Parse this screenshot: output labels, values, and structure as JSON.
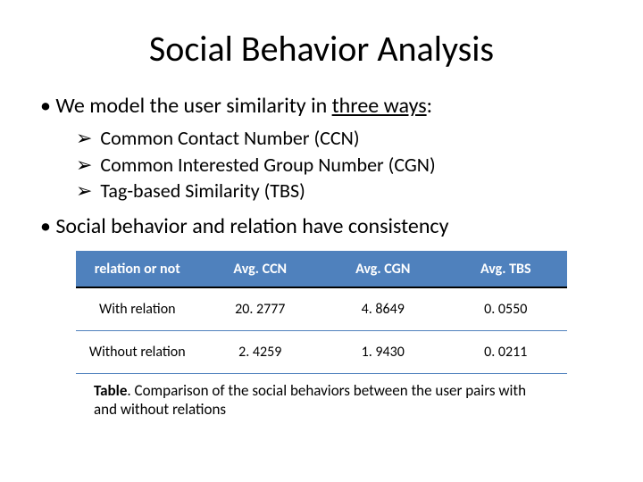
{
  "title": "Social Behavior Analysis",
  "bullet1_pre": "We model the user similarity in ",
  "bullet1_underlined": "three ways",
  "bullet1_post": ":",
  "subitems": [
    "Common Contact Number (CCN)",
    "Common Interested Group Number (CGN)",
    "Tag-based Similarity (TBS)"
  ],
  "bullet2": "Social behavior and relation have consistency",
  "table": {
    "header_bg": "#4f81bd",
    "columns": [
      "relation or not",
      "Avg. CCN",
      "Avg. CGN",
      "Avg. TBS"
    ],
    "rows": [
      [
        "With relation",
        "20. 2777",
        "4. 8649",
        "0. 0550"
      ],
      [
        "Without relation",
        "2. 4259",
        "1. 9430",
        "0. 0211"
      ]
    ]
  },
  "caption_label": "Table",
  "caption_text": ". Comparison of the social behaviors between the user pairs with and without relations"
}
